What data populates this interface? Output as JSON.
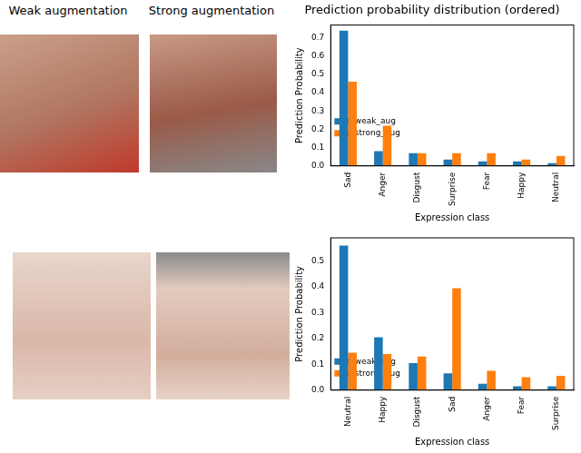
{
  "image_columns": [
    "Weak augmentation",
    "Strong augmentation"
  ],
  "chart_data": [
    {
      "type": "bar",
      "title": "Prediction probability distribution (ordered)",
      "categories": [
        "Sad",
        "Anger",
        "Disgust",
        "Surprise",
        "Fear",
        "Happy",
        "Neutral"
      ],
      "series": [
        {
          "name": "weak_aug",
          "color": "#1f77b4",
          "values": [
            0.74,
            0.08,
            0.07,
            0.035,
            0.025,
            0.025,
            0.015
          ]
        },
        {
          "name": "strong_aug",
          "color": "#ff7f0e",
          "values": [
            0.46,
            0.22,
            0.07,
            0.07,
            0.07,
            0.035,
            0.055
          ]
        }
      ],
      "x_label": "Expression class",
      "y_label": "Prediction Probability",
      "ylim": [
        0,
        0.77
      ],
      "yticks": [
        {
          "value": 0,
          "label": "0.0"
        },
        0.1,
        0.2,
        0.3,
        0.4,
        0.5,
        0.6,
        0.7
      ],
      "grid": false,
      "legend": "upper right"
    },
    {
      "type": "bar",
      "categories": [
        "Neutral",
        "Happy",
        "Disgust",
        "Sad",
        "Anger",
        "Fear",
        "Surprise"
      ],
      "series": [
        {
          "name": "weak_aug",
          "color": "#1f77b4",
          "values": [
            0.56,
            0.205,
            0.105,
            0.065,
            0.025,
            0.015,
            0.015
          ]
        },
        {
          "name": "strong_aug",
          "color": "#ff7f0e",
          "values": [
            0.145,
            0.14,
            0.13,
            0.395,
            0.075,
            0.05,
            0.055
          ]
        }
      ],
      "x_label": "Expression class",
      "y_label": "Prediction Probability",
      "ylim": [
        0,
        0.59
      ],
      "yticks": [
        {
          "value": 0,
          "label": "0.0"
        },
        0.1,
        0.2,
        0.3,
        0.4,
        0.5
      ],
      "grid": false,
      "legend": "upper right"
    }
  ]
}
